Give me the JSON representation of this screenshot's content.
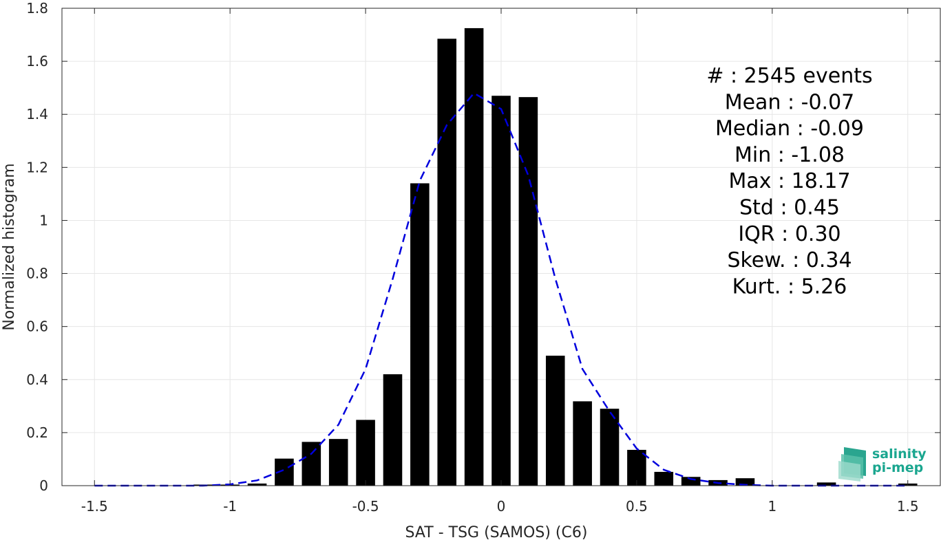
{
  "chart_data": {
    "type": "bar",
    "xlabel": "SAT - TSG (SAMOS) (C6)",
    "ylabel": "Normalized histogram",
    "xlim": [
      -1.62,
      1.62
    ],
    "ylim": [
      0,
      1.8
    ],
    "xticks": [
      -1.5,
      -1,
      -0.5,
      0,
      0.5,
      1,
      1.5
    ],
    "xtick_labels": [
      "-1.5",
      "-1",
      "-0.5",
      "0",
      "0.5",
      "1",
      "1.5"
    ],
    "yticks": [
      0,
      0.2,
      0.4,
      0.6,
      0.8,
      1,
      1.2,
      1.4,
      1.6,
      1.8
    ],
    "ytick_labels": [
      "0",
      "0.2",
      "0.4",
      "0.6",
      "0.8",
      "1",
      "1.2",
      "1.4",
      "1.6",
      "1.8"
    ],
    "grid": true,
    "bar_width": 0.07,
    "bar_color": "#000000",
    "bins": [
      {
        "x": -1.1,
        "y": 0.004
      },
      {
        "x": -1.0,
        "y": 0.004
      },
      {
        "x": -0.9,
        "y": 0.008
      },
      {
        "x": -0.8,
        "y": 0.102
      },
      {
        "x": -0.7,
        "y": 0.165
      },
      {
        "x": -0.6,
        "y": 0.176
      },
      {
        "x": -0.5,
        "y": 0.248
      },
      {
        "x": -0.4,
        "y": 0.42
      },
      {
        "x": -0.3,
        "y": 1.14
      },
      {
        "x": -0.2,
        "y": 1.685
      },
      {
        "x": -0.1,
        "y": 1.725
      },
      {
        "x": 0.0,
        "y": 1.47
      },
      {
        "x": 0.1,
        "y": 1.465
      },
      {
        "x": 0.2,
        "y": 0.49
      },
      {
        "x": 0.3,
        "y": 0.318
      },
      {
        "x": 0.4,
        "y": 0.29
      },
      {
        "x": 0.5,
        "y": 0.135
      },
      {
        "x": 0.6,
        "y": 0.052
      },
      {
        "x": 0.7,
        "y": 0.033
      },
      {
        "x": 0.8,
        "y": 0.021
      },
      {
        "x": 0.9,
        "y": 0.028
      },
      {
        "x": 1.2,
        "y": 0.012
      },
      {
        "x": 1.5,
        "y": 0.008
      }
    ],
    "fit_curve": {
      "color": "#0000dd",
      "style": "dashed",
      "x": [
        -1.5,
        -1.4,
        -1.3,
        -1.2,
        -1.1,
        -1.0,
        -0.9,
        -0.8,
        -0.7,
        -0.6,
        -0.5,
        -0.4,
        -0.3,
        -0.2,
        -0.1,
        0.0,
        0.1,
        0.2,
        0.3,
        0.4,
        0.5,
        0.6,
        0.7,
        0.8,
        0.9,
        1.0,
        1.1,
        1.2,
        1.3,
        1.4,
        1.5
      ],
      "y": [
        0.0,
        0.0,
        0.0,
        0.0,
        0.0,
        0.005,
        0.02,
        0.06,
        0.12,
        0.23,
        0.44,
        0.78,
        1.15,
        1.36,
        1.48,
        1.42,
        1.17,
        0.78,
        0.44,
        0.28,
        0.14,
        0.06,
        0.025,
        0.01,
        0.003,
        0.0,
        0.0,
        0.0,
        0.0,
        0.0,
        0.0
      ]
    },
    "stats": [
      "#  : 2545 events",
      "Mean : -0.07",
      "Median : -0.09",
      "Min : -1.08",
      "Max : 18.17",
      "Std : 0.45",
      "IQR : 0.30",
      "Skew. : 0.34",
      "Kurt. : 5.26"
    ]
  },
  "logo": {
    "line1": "salinity",
    "line2": "pi-mep",
    "color": "#1aa68f"
  }
}
